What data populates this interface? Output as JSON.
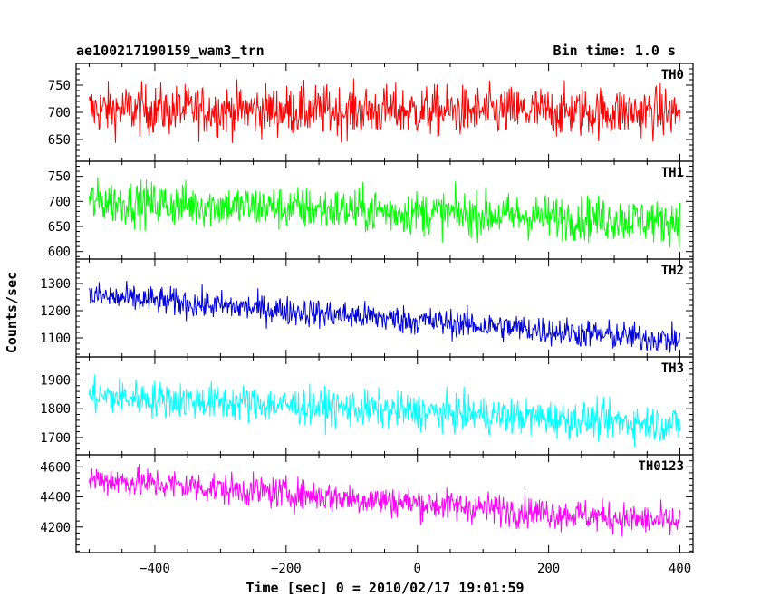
{
  "header": {
    "title": "ae100217190159_wam3_trn",
    "bin_time": "Bin time: 1.0 s"
  },
  "axes": {
    "ylabel": "Counts/sec",
    "xlabel": "Time [sec] 0 = 2010/02/17 19:01:59"
  },
  "chart_data": {
    "type": "line",
    "x": {
      "start": -500,
      "end": 400,
      "step": 1
    },
    "xlim": [
      -520,
      420
    ],
    "xticks": [
      -400,
      -200,
      0,
      200,
      400
    ],
    "xtick_labels": [
      "−400",
      "−200",
      "0",
      "200",
      "400"
    ],
    "panels": [
      {
        "name": "TH0",
        "color": "#ff0000",
        "ylim": [
          610,
          790
        ],
        "yticks": [
          650,
          700,
          750
        ],
        "trend_start": 705,
        "trend_end": 700,
        "noise": 42
      },
      {
        "name": "TH1",
        "color": "#00ff00",
        "ylim": [
          585,
          780
        ],
        "yticks": [
          600,
          650,
          700,
          750
        ],
        "trend_start": 700,
        "trend_end": 660,
        "noise": 40
      },
      {
        "name": "TH2",
        "color": "#0000dd",
        "ylim": [
          1030,
          1390
        ],
        "yticks": [
          1100,
          1200,
          1300
        ],
        "trend_start": 1255,
        "trend_end": 1090,
        "noise": 48
      },
      {
        "name": "TH3",
        "color": "#00ffff",
        "ylim": [
          1640,
          1980
        ],
        "yticks": [
          1700,
          1800,
          1900
        ],
        "trend_start": 1845,
        "trend_end": 1745,
        "noise": 58
      },
      {
        "name": "TH0123",
        "color": "#ff00ff",
        "ylim": [
          4030,
          4680
        ],
        "yticks": [
          4200,
          4400,
          4600
        ],
        "trend_start": 4520,
        "trend_end": 4230,
        "noise": 95
      }
    ]
  }
}
